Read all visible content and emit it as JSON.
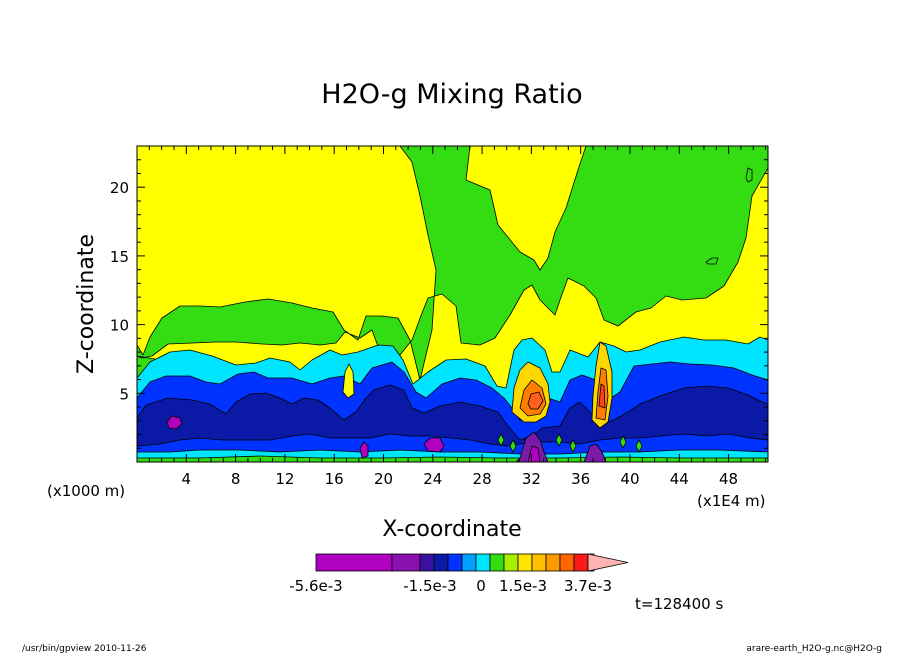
{
  "chart_data": {
    "type": "heatmap",
    "title": "H2O-g Mixing Ratio",
    "xlabel": "X-coordinate",
    "ylabel": "Z-coordinate",
    "x_unit_left": "(x1000 m)",
    "x_unit_right": "(x1E4 m)",
    "x_ticks": [
      "4",
      "8",
      "12",
      "16",
      "20",
      "24",
      "28",
      "32",
      "36",
      "40",
      "44",
      "48"
    ],
    "y_ticks": [
      "5",
      "10",
      "15",
      "20"
    ],
    "xlim": [
      0,
      51.2
    ],
    "ylim": [
      0,
      23
    ],
    "colorbar_labels": [
      "-5.6e-3",
      "-1.5e-3",
      "0",
      "1.5e-3",
      "3.7e-3"
    ],
    "time_label": "t=128400 s",
    "colors": {
      "yellow": "#ffff00",
      "green": "#33dd11",
      "cyan": "#00e5ff",
      "blue": "#0033ff",
      "navy": "#0a1aa6",
      "purple": "#7a1aa6",
      "magenta": "#b000c0",
      "gold": "#ffd700",
      "orange": "#ff8000",
      "red": "#ff1a1a"
    },
    "colorbar_colors": [
      "#b000c0",
      "#8a10b0",
      "#3a10a0",
      "#0a1aa6",
      "#0033ff",
      "#00a0ff",
      "#00e5ff",
      "#33dd11",
      "#a8f000",
      "#ffe600",
      "#ffc000",
      "#ff9900",
      "#ff6600",
      "#ff1a1a",
      "#ff7777",
      "#ffb3b3"
    ]
  },
  "footer": {
    "left": "/usr/bin/gpview  2010-11-26",
    "right": "arare-earth_H2O-g.nc@H2O-g"
  }
}
